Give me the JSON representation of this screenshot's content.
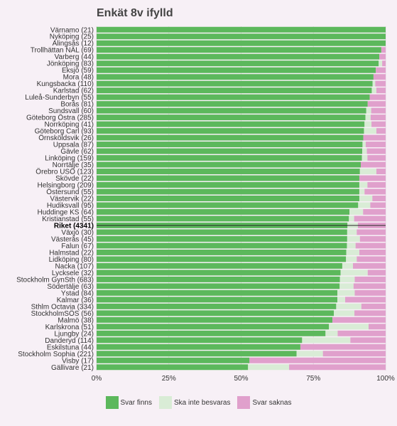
{
  "chart_data": {
    "type": "bar",
    "orientation": "horizontal",
    "stacked": true,
    "title": "Enkät 8v ifylld",
    "x_ticks": [
      "0%",
      "25%",
      "50%",
      "75%",
      "100%"
    ],
    "xlim": [
      0,
      100
    ],
    "grid": true,
    "legend_position": "bottom",
    "highlight_category": "Riket (4341)",
    "categories": [
      "Värnamo (21)",
      "Nyköping (25)",
      "Alingsås (12)",
      "Trollhättan NÄL (69)",
      "Varberg (44)",
      "Jönköping (83)",
      "Eksjö (59)",
      "Mora (48)",
      "Kungsbacka (110)",
      "Karlstad (62)",
      "Luleå-Sunderbyn (55)",
      "Borås (81)",
      "Sundsvall (60)",
      "Göteborg Östra (285)",
      "Norrköping (41)",
      "Göteborg Carl (93)",
      "Örnsköldsvik (26)",
      "Uppsala (87)",
      "Gävle (62)",
      "Linköping (159)",
      "Norrtälje (35)",
      "Örebro USÖ (123)",
      "Skövde (22)",
      "Helsingborg (209)",
      "Östersund (55)",
      "Västervik (22)",
      "Hudiksvall (95)",
      "Huddinge KS (64)",
      "Kristianstad (55)",
      "Riket (4341)",
      "Växjö (30)",
      "Västerås (45)",
      "Falun (67)",
      "Halmstad (22)",
      "Lidköping (80)",
      "Nacka (107)",
      "Lycksele (32)",
      "Stockholm GynSth (683)",
      "Södertälje (63)",
      "Ystad (84)",
      "Kalmar (36)",
      "Sthlm Octavia (334)",
      "StockholmSÖS (56)",
      "Malmö (38)",
      "Karlskrona (51)",
      "Ljungby (24)",
      "Danderyd (114)",
      "Eskilstuna (44)",
      "Stockholm Sophia (221)",
      "Visby (17)",
      "Gällivare (21)"
    ],
    "series": [
      {
        "name": "Svar finns",
        "color": "#5cb85c",
        "values": [
          100,
          100,
          100,
          98.5,
          97.8,
          97.6,
          96.6,
          95.8,
          95.5,
          95.2,
          94.5,
          93.8,
          93.3,
          93.0,
          92.7,
          92.5,
          92.3,
          92.0,
          91.9,
          91.8,
          91.4,
          91.1,
          90.9,
          90.9,
          90.9,
          90.9,
          90.5,
          87.5,
          87.3,
          86.8,
          86.7,
          86.7,
          86.6,
          86.4,
          86.3,
          85.0,
          84.4,
          84.2,
          84.1,
          83.3,
          83.3,
          82.9,
          82.1,
          81.6,
          80.4,
          79.2,
          71.1,
          70.5,
          69.2,
          52.9,
          52.4
        ]
      },
      {
        "name": "Ska inte besvaras",
        "color": "#d9ecd6",
        "values": [
          0,
          0,
          0,
          0,
          0,
          1.2,
          0,
          0,
          0.9,
          1.6,
          0,
          0,
          1.7,
          1.8,
          2.4,
          4.3,
          0,
          1.1,
          1.6,
          1.9,
          0,
          5.7,
          0,
          2.8,
          1.8,
          4.5,
          4.2,
          4.7,
          1.8,
          3.6,
          3.3,
          4.4,
          3.0,
          4.5,
          3.7,
          3.7,
          9.4,
          5.1,
          4.8,
          6.0,
          2.7,
          8.7,
          7.1,
          0,
          13.7,
          4.2,
          16.7,
          0,
          9.1,
          0,
          14.2
        ]
      },
      {
        "name": "Svar saknas",
        "color": "#e0a0cc",
        "values": [
          0,
          0,
          0,
          1.5,
          2.2,
          1.2,
          3.4,
          4.2,
          3.6,
          3.2,
          5.5,
          6.2,
          5.0,
          5.2,
          4.9,
          3.2,
          7.7,
          6.9,
          6.5,
          6.3,
          8.6,
          3.2,
          9.1,
          6.3,
          7.3,
          4.6,
          5.3,
          7.8,
          10.9,
          9.6,
          10.0,
          8.9,
          10.4,
          9.1,
          10.0,
          11.3,
          6.2,
          10.7,
          11.1,
          10.7,
          14.0,
          8.4,
          10.8,
          18.4,
          5.9,
          16.6,
          12.2,
          29.5,
          21.7,
          47.1,
          33.4
        ]
      }
    ]
  }
}
